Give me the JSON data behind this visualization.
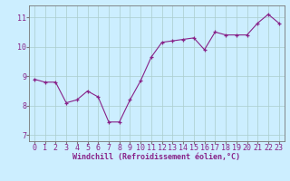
{
  "x": [
    0,
    1,
    2,
    3,
    4,
    5,
    6,
    7,
    8,
    9,
    10,
    11,
    12,
    13,
    14,
    15,
    16,
    17,
    18,
    19,
    20,
    21,
    22,
    23
  ],
  "y": [
    8.9,
    8.8,
    8.8,
    8.1,
    8.2,
    8.5,
    8.3,
    7.45,
    7.45,
    8.2,
    8.85,
    9.65,
    10.15,
    10.2,
    10.25,
    10.3,
    9.9,
    10.5,
    10.4,
    10.4,
    10.4,
    10.8,
    11.1,
    10.8
  ],
  "line_color": "#882288",
  "marker": "+",
  "marker_size": 3,
  "bg_color": "#cceeff",
  "grid_color": "#aacccc",
  "xlabel": "Windchill (Refroidissement éolien,°C)",
  "xlabel_fontsize": 6.0,
  "tick_fontsize": 6.0,
  "yticks": [
    7,
    8,
    9,
    10,
    11
  ],
  "xticks": [
    0,
    1,
    2,
    3,
    4,
    5,
    6,
    7,
    8,
    9,
    10,
    11,
    12,
    13,
    14,
    15,
    16,
    17,
    18,
    19,
    20,
    21,
    22,
    23
  ],
  "ylim": [
    6.8,
    11.4
  ],
  "xlim": [
    -0.5,
    23.5
  ]
}
